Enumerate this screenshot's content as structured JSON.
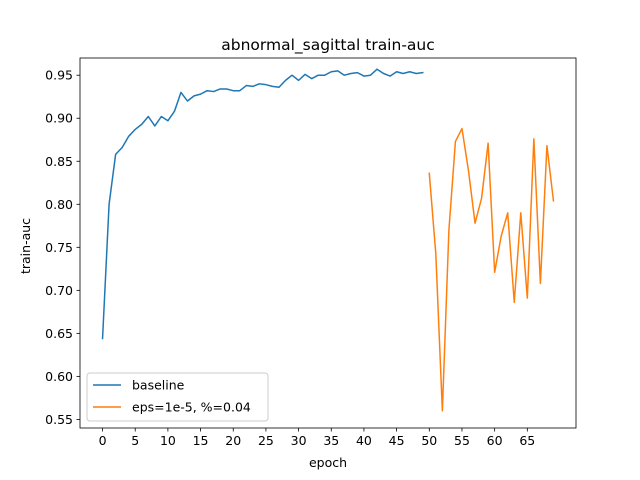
{
  "chart_data": {
    "type": "line",
    "title": "abnormal_sagittal train-auc",
    "xlabel": "epoch",
    "ylabel": "train-auc",
    "xlim": [
      -3.45,
      72.45
    ],
    "ylim": [
      0.54,
      0.97
    ],
    "xticks": [
      0,
      5,
      10,
      15,
      20,
      25,
      30,
      35,
      40,
      45,
      50,
      55,
      60,
      65
    ],
    "xtick_labels": [
      "0",
      "5",
      "10",
      "15",
      "20",
      "25",
      "30",
      "35",
      "40",
      "45",
      "50",
      "55",
      "60",
      "65"
    ],
    "yticks": [
      0.55,
      0.6,
      0.65,
      0.7,
      0.75,
      0.8,
      0.85,
      0.9,
      0.95
    ],
    "ytick_labels": [
      "0.55",
      "0.60",
      "0.65",
      "0.70",
      "0.75",
      "0.80",
      "0.85",
      "0.90",
      "0.95"
    ],
    "grid": false,
    "legend_position": "lower-left",
    "series": [
      {
        "name": "baseline",
        "color": "#1f77b4",
        "x": [
          0,
          1,
          2,
          3,
          4,
          5,
          6,
          7,
          8,
          9,
          10,
          11,
          12,
          13,
          14,
          15,
          16,
          17,
          18,
          19,
          20,
          21,
          22,
          23,
          24,
          25,
          26,
          27,
          28,
          29,
          30,
          31,
          32,
          33,
          34,
          35,
          36,
          37,
          38,
          39,
          40,
          41,
          42,
          43,
          44,
          45,
          46,
          47,
          48,
          49
        ],
        "y": [
          0.644,
          0.8,
          0.858,
          0.866,
          0.879,
          0.887,
          0.893,
          0.902,
          0.891,
          0.902,
          0.897,
          0.908,
          0.93,
          0.92,
          0.926,
          0.928,
          0.932,
          0.931,
          0.934,
          0.934,
          0.932,
          0.932,
          0.938,
          0.937,
          0.94,
          0.939,
          0.937,
          0.936,
          0.944,
          0.95,
          0.944,
          0.951,
          0.946,
          0.95,
          0.95,
          0.954,
          0.955,
          0.95,
          0.952,
          0.953,
          0.949,
          0.95,
          0.957,
          0.952,
          0.949,
          0.954,
          0.952,
          0.954,
          0.952,
          0.953
        ]
      },
      {
        "name": "eps=1e-5, %=0.04",
        "color": "#ff7f0e",
        "x": [
          50,
          51,
          52,
          53,
          54,
          55,
          56,
          57,
          58,
          59,
          60,
          61,
          62,
          63,
          64,
          65,
          66,
          67,
          68,
          69
        ],
        "y": [
          0.836,
          0.742,
          0.56,
          0.77,
          0.873,
          0.888,
          0.839,
          0.778,
          0.807,
          0.871,
          0.721,
          0.763,
          0.79,
          0.686,
          0.79,
          0.691,
          0.876,
          0.708,
          0.868,
          0.804
        ]
      }
    ]
  }
}
